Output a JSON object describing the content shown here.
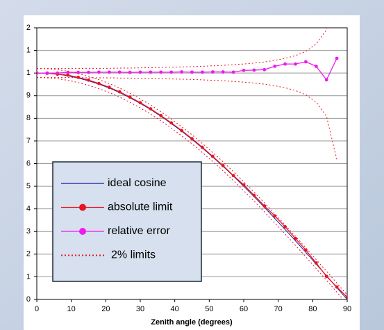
{
  "chart_data": {
    "type": "line",
    "xlabel": "Zenith angle (degrees)",
    "x": [
      0,
      3,
      6,
      9,
      12,
      15,
      18,
      21,
      24,
      27,
      30,
      33,
      36,
      39,
      42,
      45,
      48,
      51,
      54,
      57,
      60,
      63,
      66,
      69,
      72,
      75,
      78,
      81,
      84,
      87,
      90
    ],
    "xlim": [
      0,
      90
    ],
    "xticks": [
      0,
      10,
      20,
      30,
      40,
      50,
      60,
      70,
      80,
      90
    ],
    "ylim": [
      0,
      1.2
    ],
    "yticks": [
      0,
      {
        "value": 0.1,
        "label": "1"
      },
      {
        "value": 0.2,
        "label": "2"
      },
      {
        "value": 0.3,
        "label": "3"
      },
      {
        "value": 0.4,
        "label": "4"
      },
      {
        "value": 0.5,
        "label": "5"
      },
      {
        "value": 0.6,
        "label": "6"
      },
      {
        "value": 0.7,
        "label": "7"
      },
      {
        "value": 0.8,
        "label": "8"
      },
      {
        "value": 0.9,
        "label": "9"
      },
      {
        "value": 1.0,
        "label": "1"
      },
      {
        "value": 1.1,
        "label": "1"
      },
      {
        "value": 1.2,
        "label": "2"
      }
    ],
    "grid": true,
    "series": [
      {
        "name": "ideal cosine",
        "color": "#1a1aa6",
        "marker": false,
        "values": [
          1.0,
          0.999,
          0.995,
          0.988,
          0.978,
          0.966,
          0.951,
          0.934,
          0.914,
          0.891,
          0.866,
          0.839,
          0.809,
          0.777,
          0.743,
          0.707,
          0.669,
          0.629,
          0.588,
          0.545,
          0.5,
          0.454,
          0.407,
          0.358,
          0.309,
          0.259,
          0.208,
          0.156,
          0.105,
          0.052,
          0.0
        ]
      },
      {
        "name": "absolute limit",
        "color": "#e8141e",
        "marker": true,
        "values": [
          1.0,
          0.999,
          0.995,
          0.991,
          0.981,
          0.969,
          0.954,
          0.937,
          0.917,
          0.894,
          0.869,
          0.842,
          0.812,
          0.78,
          0.746,
          0.71,
          0.672,
          0.632,
          0.591,
          0.547,
          0.506,
          0.46,
          0.413,
          0.369,
          0.321,
          0.269,
          0.218,
          0.161,
          0.102,
          0.055,
          0.01
        ]
      },
      {
        "name": "relative error",
        "color": "#ee1aee",
        "marker": true,
        "values": [
          1.0,
          1.0,
          1.0,
          1.003,
          1.003,
          1.003,
          1.004,
          1.004,
          1.004,
          1.003,
          1.004,
          1.004,
          1.004,
          1.004,
          1.005,
          1.004,
          1.004,
          1.005,
          1.005,
          1.004,
          1.012,
          1.013,
          1.015,
          1.03,
          1.04,
          1.04,
          1.05,
          1.03,
          0.97,
          1.065,
          null
        ]
      },
      {
        "name": "2% limits",
        "color": "#e8141e",
        "marker": false,
        "dotted": true,
        "lines": [
          [
            1.02,
            1.019,
            1.015,
            1.008,
            0.998,
            0.986,
            0.971,
            0.954,
            0.934,
            0.911,
            0.886,
            0.859,
            0.829,
            0.797,
            0.763,
            0.727,
            0.689,
            0.649,
            0.608,
            0.565,
            0.52,
            0.474,
            0.427,
            0.378,
            0.329,
            0.279,
            0.228,
            0.176,
            0.125,
            0.072,
            0.02
          ],
          [
            0.98,
            0.979,
            0.975,
            0.968,
            0.958,
            0.946,
            0.931,
            0.914,
            0.894,
            0.871,
            0.846,
            0.819,
            0.789,
            0.757,
            0.723,
            0.687,
            0.649,
            0.609,
            0.568,
            0.525,
            0.48,
            0.434,
            0.387,
            0.338,
            0.289,
            0.239,
            0.188,
            0.136,
            0.085,
            0.032,
            -0.02
          ],
          [
            1.02,
            1.02,
            1.02,
            1.02,
            1.02,
            1.021,
            1.021,
            1.021,
            1.022,
            1.022,
            1.023,
            1.024,
            1.025,
            1.026,
            1.027,
            1.028,
            1.03,
            1.032,
            1.034,
            1.037,
            1.04,
            1.044,
            1.049,
            1.056,
            1.065,
            1.077,
            1.096,
            1.128,
            1.191,
            1.382,
            null
          ],
          [
            0.98,
            0.98,
            0.98,
            0.98,
            0.98,
            0.979,
            0.979,
            0.979,
            0.978,
            0.978,
            0.977,
            0.976,
            0.975,
            0.974,
            0.973,
            0.972,
            0.97,
            0.968,
            0.966,
            0.963,
            0.96,
            0.956,
            0.951,
            0.944,
            0.935,
            0.923,
            0.904,
            0.872,
            0.809,
            0.618,
            null
          ]
        ]
      }
    ]
  }
}
